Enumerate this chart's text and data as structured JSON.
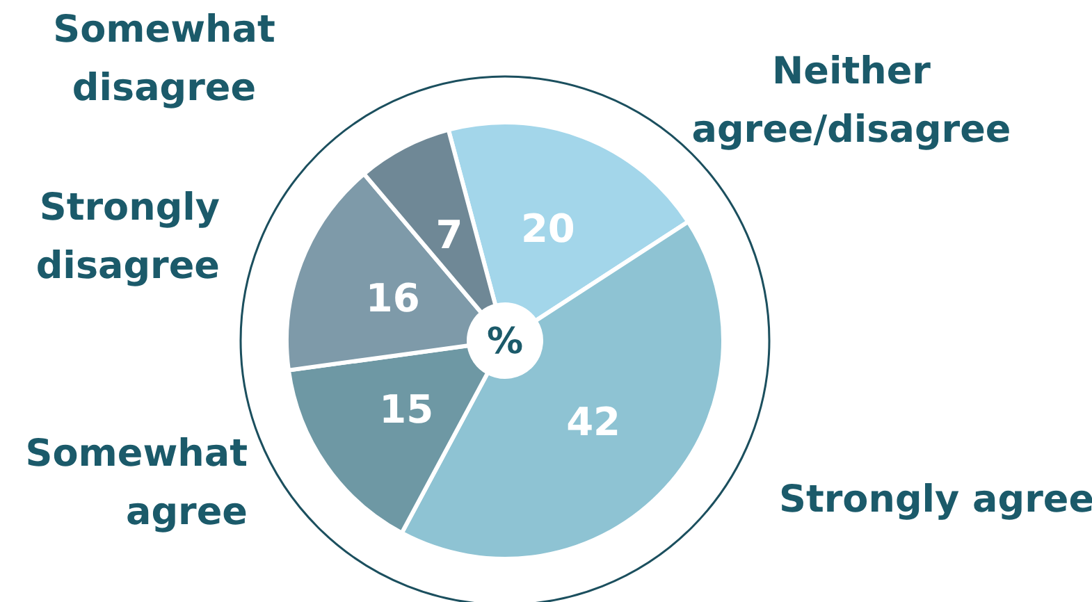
{
  "chart_data": {
    "type": "donut",
    "categories": [
      "Neither agree/disagree",
      "Strongly agree",
      "Somewhat agree",
      "Strongly disagree",
      "Somewhat disagree"
    ],
    "values": [
      20,
      42,
      15,
      16,
      7
    ],
    "colors": [
      "#a3d6ea",
      "#8ec3d3",
      "#6e98a4",
      "#7e9aa9",
      "#6f8896"
    ],
    "data_labels": true,
    "annotations": [
      "%"
    ]
  }
}
